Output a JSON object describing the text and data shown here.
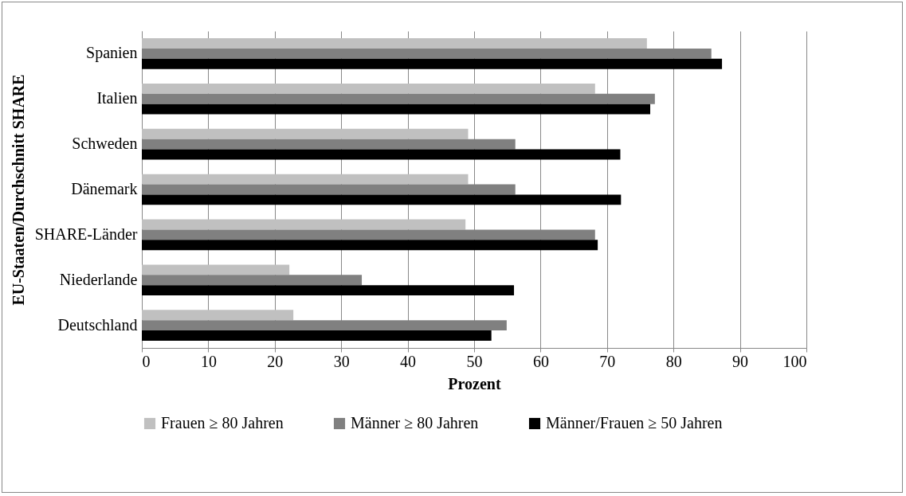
{
  "chart_data": {
    "type": "bar",
    "orientation": "horizontal",
    "xlabel": "Prozent",
    "ylabel": "EU-Staaten/Durchschnitt SHARE",
    "categories": [
      "Spanien",
      "Italien",
      "Schweden",
      "Dänemark",
      "SHARE-Länder",
      "Niederlande",
      "Deutschland"
    ],
    "series": [
      {
        "name": "Frauen ≥ 80 Jahren",
        "color": "#c0c0c0",
        "values": [
          76.0,
          68.2,
          49.1,
          49.1,
          48.7,
          22.2,
          22.8
        ]
      },
      {
        "name": "Männer ≥ 80 Jahren",
        "color": "#808080",
        "values": [
          85.7,
          77.2,
          56.2,
          56.2,
          68.2,
          33.1,
          54.9
        ]
      },
      {
        "name": "Männer/Frauen ≥ 50 Jahren",
        "color": "#000000",
        "values": [
          87.3,
          76.5,
          72.0,
          72.1,
          68.6,
          56.0,
          52.6
        ]
      }
    ],
    "xlim": [
      0,
      100
    ],
    "xticks": [
      0,
      10,
      20,
      30,
      40,
      50,
      60,
      70,
      80,
      90,
      100
    ],
    "grid": "x",
    "legend": "bottom"
  }
}
